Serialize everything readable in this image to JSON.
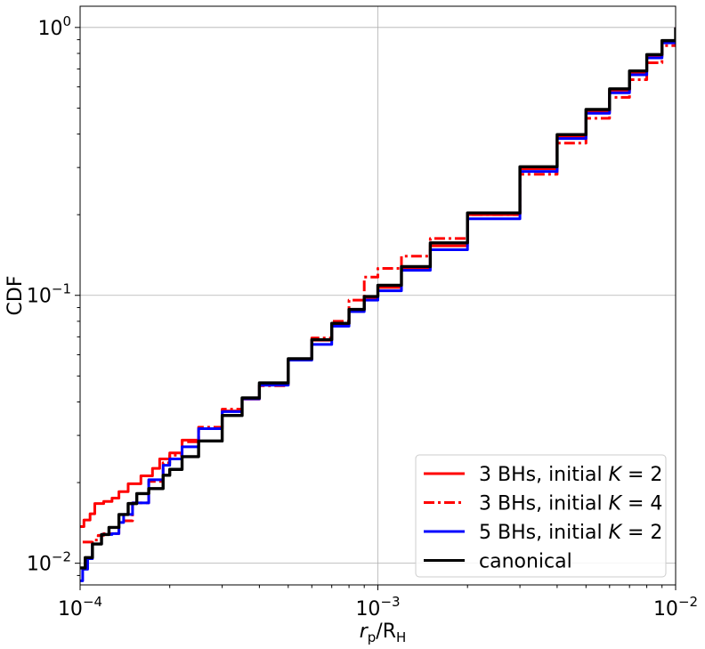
{
  "chart_data": {
    "type": "line",
    "xscale": "log",
    "yscale": "log",
    "xlim": [
      0.0001,
      0.01
    ],
    "ylim": [
      0.0083,
      1.2
    ],
    "xlabel": "r_p/R_H",
    "ylabel": "CDF",
    "grid": true,
    "legend_position": "lower-right",
    "x_ticks": [
      {
        "base": "10",
        "exp": "−4",
        "value": 0.0001
      },
      {
        "base": "10",
        "exp": "−3",
        "value": 0.001
      },
      {
        "base": "10",
        "exp": "−2",
        "value": 0.01
      }
    ],
    "y_ticks": [
      {
        "base": "10",
        "exp": "−2",
        "value": 0.01
      },
      {
        "base": "10",
        "exp": "−1",
        "value": 0.1
      },
      {
        "base": "10",
        "exp": "0",
        "value": 1
      }
    ],
    "series": [
      {
        "name": "3 BHs, initial K = 2",
        "color": "#ff0000",
        "style": "solid",
        "points": [
          [
            0.0001,
            0.0137
          ],
          [
            0.000103,
            0.0145
          ],
          [
            0.000108,
            0.0153
          ],
          [
            0.000112,
            0.0167
          ],
          [
            0.00012,
            0.017
          ],
          [
            0.000128,
            0.0175
          ],
          [
            0.000135,
            0.0185
          ],
          [
            0.000145,
            0.0198
          ],
          [
            0.00016,
            0.0212
          ],
          [
            0.000175,
            0.0226
          ],
          [
            0.000185,
            0.0245
          ],
          [
            0.0002,
            0.0258
          ],
          [
            0.00022,
            0.0288
          ],
          [
            0.00025,
            0.0318
          ],
          [
            0.0003,
            0.037
          ],
          [
            0.00035,
            0.041
          ],
          [
            0.0004,
            0.0463
          ],
          [
            0.0005,
            0.0575
          ],
          [
            0.0006,
            0.068
          ],
          [
            0.0007,
            0.0782
          ],
          [
            0.0008,
            0.088
          ],
          [
            0.0009,
            0.098
          ],
          [
            0.001,
            0.107
          ],
          [
            0.0012,
            0.126
          ],
          [
            0.0015,
            0.153
          ],
          [
            0.002,
            0.2
          ],
          [
            0.003,
            0.297
          ],
          [
            0.004,
            0.392
          ],
          [
            0.005,
            0.488
          ],
          [
            0.006,
            0.583
          ],
          [
            0.007,
            0.68
          ],
          [
            0.008,
            0.78
          ],
          [
            0.009,
            0.88
          ],
          [
            0.01,
            1.0
          ]
        ]
      },
      {
        "name": "3 BHs, initial K = 4",
        "color": "#ff0000",
        "style": "dashdot",
        "points": [
          [
            0.000102,
            0.012
          ],
          [
            0.00011,
            0.0122
          ],
          [
            0.000115,
            0.0127
          ],
          [
            0.00012,
            0.0129
          ],
          [
            0.000135,
            0.0144
          ],
          [
            0.00015,
            0.0168
          ],
          [
            0.00017,
            0.0202
          ],
          [
            0.00019,
            0.0237
          ],
          [
            0.0002,
            0.0253
          ],
          [
            0.00022,
            0.0284
          ],
          [
            0.00025,
            0.0322
          ],
          [
            0.0003,
            0.0376
          ],
          [
            0.00035,
            0.0412
          ],
          [
            0.0004,
            0.046
          ],
          [
            0.0005,
            0.0578
          ],
          [
            0.0006,
            0.0693
          ],
          [
            0.0007,
            0.08
          ],
          [
            0.0008,
            0.096
          ],
          [
            0.0009,
            0.117
          ],
          [
            0.001,
            0.126
          ],
          [
            0.0012,
            0.14
          ],
          [
            0.0015,
            0.163
          ],
          [
            0.002,
            0.2
          ],
          [
            0.003,
            0.283
          ],
          [
            0.004,
            0.37
          ],
          [
            0.005,
            0.458
          ],
          [
            0.006,
            0.548
          ],
          [
            0.007,
            0.638
          ],
          [
            0.008,
            0.738
          ],
          [
            0.009,
            0.855
          ],
          [
            0.01,
            1.0
          ]
        ]
      },
      {
        "name": "5 BHs, initial K = 2",
        "color": "#0000ff",
        "style": "solid",
        "points": [
          [
            0.0001,
            0.0086
          ],
          [
            0.000102,
            0.0095
          ],
          [
            0.000106,
            0.0104
          ],
          [
            0.00011,
            0.0118
          ],
          [
            0.000118,
            0.0128
          ],
          [
            0.000128,
            0.0129
          ],
          [
            0.000135,
            0.0142
          ],
          [
            0.00014,
            0.0152
          ],
          [
            0.00015,
            0.0168
          ],
          [
            0.00017,
            0.0205
          ],
          [
            0.00019,
            0.0232
          ],
          [
            0.0002,
            0.0245
          ],
          [
            0.00022,
            0.0272
          ],
          [
            0.00025,
            0.0318
          ],
          [
            0.0003,
            0.0368
          ],
          [
            0.00035,
            0.0411
          ],
          [
            0.0004,
            0.0462
          ],
          [
            0.0005,
            0.0573
          ],
          [
            0.0006,
            0.0656
          ],
          [
            0.0007,
            0.0767
          ],
          [
            0.0008,
            0.087
          ],
          [
            0.0009,
            0.096
          ],
          [
            0.001,
            0.104
          ],
          [
            0.0012,
            0.124
          ],
          [
            0.0015,
            0.148
          ],
          [
            0.002,
            0.193
          ],
          [
            0.003,
            0.29
          ],
          [
            0.004,
            0.385
          ],
          [
            0.005,
            0.478
          ],
          [
            0.006,
            0.57
          ],
          [
            0.007,
            0.666
          ],
          [
            0.008,
            0.77
          ],
          [
            0.009,
            0.876
          ],
          [
            0.01,
            1.0
          ]
        ]
      },
      {
        "name": "canonical",
        "color": "#000000",
        "style": "solid",
        "points": [
          [
            0.0001,
            0.0096
          ],
          [
            0.000104,
            0.0105
          ],
          [
            0.00011,
            0.0118
          ],
          [
            0.000118,
            0.0128
          ],
          [
            0.000125,
            0.0136
          ],
          [
            0.000135,
            0.0152
          ],
          [
            0.000145,
            0.0167
          ],
          [
            0.000155,
            0.0182
          ],
          [
            0.00017,
            0.019
          ],
          [
            0.00019,
            0.0213
          ],
          [
            0.0002,
            0.0224
          ],
          [
            0.00022,
            0.025
          ],
          [
            0.00025,
            0.0286
          ],
          [
            0.0003,
            0.0356
          ],
          [
            0.00035,
            0.0414
          ],
          [
            0.0004,
            0.0471
          ],
          [
            0.0005,
            0.058
          ],
          [
            0.0006,
            0.0683
          ],
          [
            0.0007,
            0.0786
          ],
          [
            0.0008,
            0.0886
          ],
          [
            0.0009,
            0.099
          ],
          [
            0.001,
            0.109
          ],
          [
            0.0012,
            0.128
          ],
          [
            0.0015,
            0.157
          ],
          [
            0.002,
            0.203
          ],
          [
            0.003,
            0.302
          ],
          [
            0.004,
            0.398
          ],
          [
            0.005,
            0.494
          ],
          [
            0.006,
            0.59
          ],
          [
            0.007,
            0.688
          ],
          [
            0.008,
            0.792
          ],
          [
            0.009,
            0.893
          ],
          [
            0.01,
            1.0
          ]
        ]
      }
    ]
  },
  "legend": {
    "items": [
      {
        "prefix": "3 BHs, initial ",
        "var": "K",
        "suffix": " = 2"
      },
      {
        "prefix": "3 BHs, initial ",
        "var": "K",
        "suffix": " = 4"
      },
      {
        "prefix": "5 BHs, initial ",
        "var": "K",
        "suffix": " = 2"
      },
      {
        "prefix": "canonical",
        "var": "",
        "suffix": ""
      }
    ]
  },
  "axis_text": {
    "x_main": "r",
    "x_sub": "p",
    "x_slash": "/R",
    "x_sub2": "H",
    "y": "CDF"
  }
}
